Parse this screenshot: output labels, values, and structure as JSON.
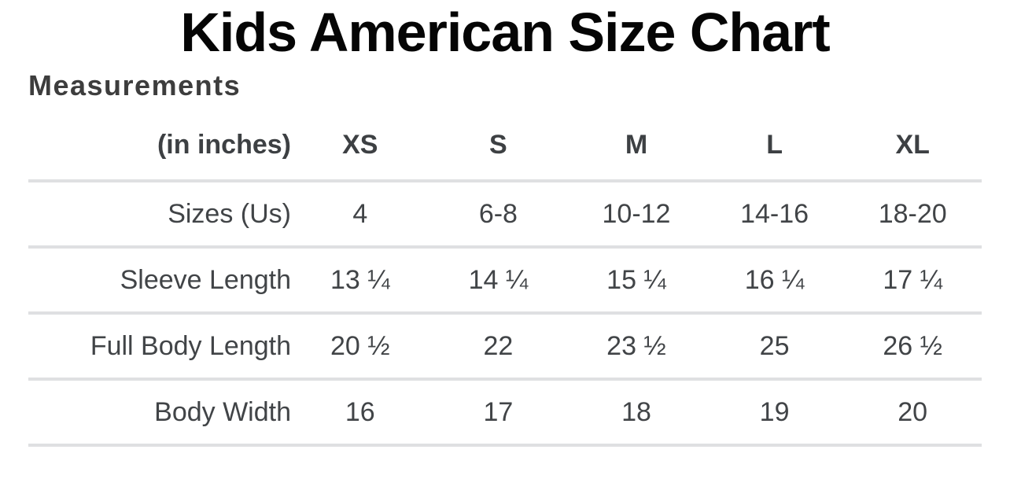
{
  "page": {
    "title": "Kids American Size Chart",
    "section_heading": "Measurements"
  },
  "table": {
    "unit_label": "(in inches)",
    "columns": [
      "XS",
      "S",
      "M",
      "L",
      "XL"
    ],
    "rows": [
      {
        "label": "Sizes (Us)",
        "values": [
          "4",
          "6-8",
          "10-12",
          "14-16",
          "18-20"
        ]
      },
      {
        "label": "Sleeve Length",
        "values": [
          "13 ¼",
          "14 ¼",
          "15 ¼",
          "16 ¼",
          "17 ¼"
        ]
      },
      {
        "label": "Full Body Length",
        "values": [
          "20 ½",
          "22",
          "23 ½",
          "25",
          "26 ½"
        ]
      },
      {
        "label": "Body Width",
        "values": [
          "16",
          "17",
          "18",
          "19",
          "20"
        ]
      }
    ]
  },
  "colors": {
    "title_text": "#050505",
    "heading_text": "#3d3d3d",
    "body_text": "#414447",
    "header_text": "#3d4043",
    "divider": "#dfe0e2",
    "background": "#ffffff"
  },
  "chart_data": {
    "type": "table",
    "title": "Kids American Size Chart",
    "subtitle": "Measurements",
    "columns": [
      "(in inches)",
      "XS",
      "S",
      "M",
      "L",
      "XL"
    ],
    "rows": [
      [
        "Sizes (Us)",
        "4",
        "6-8",
        "10-12",
        "14-16",
        "18-20"
      ],
      [
        "Sleeve Length",
        "13 ¼",
        "14 ¼",
        "15 ¼",
        "16 ¼",
        "17 ¼"
      ],
      [
        "Full Body Length",
        "20 ½",
        "22",
        "23 ½",
        "25",
        "26 ½"
      ],
      [
        "Body Width",
        "16",
        "17",
        "18",
        "19",
        "20"
      ]
    ],
    "layout_hints": {
      "label_column_alignment": "right",
      "value_column_alignment": "center",
      "row_dividers": true,
      "header_bold": true
    }
  }
}
